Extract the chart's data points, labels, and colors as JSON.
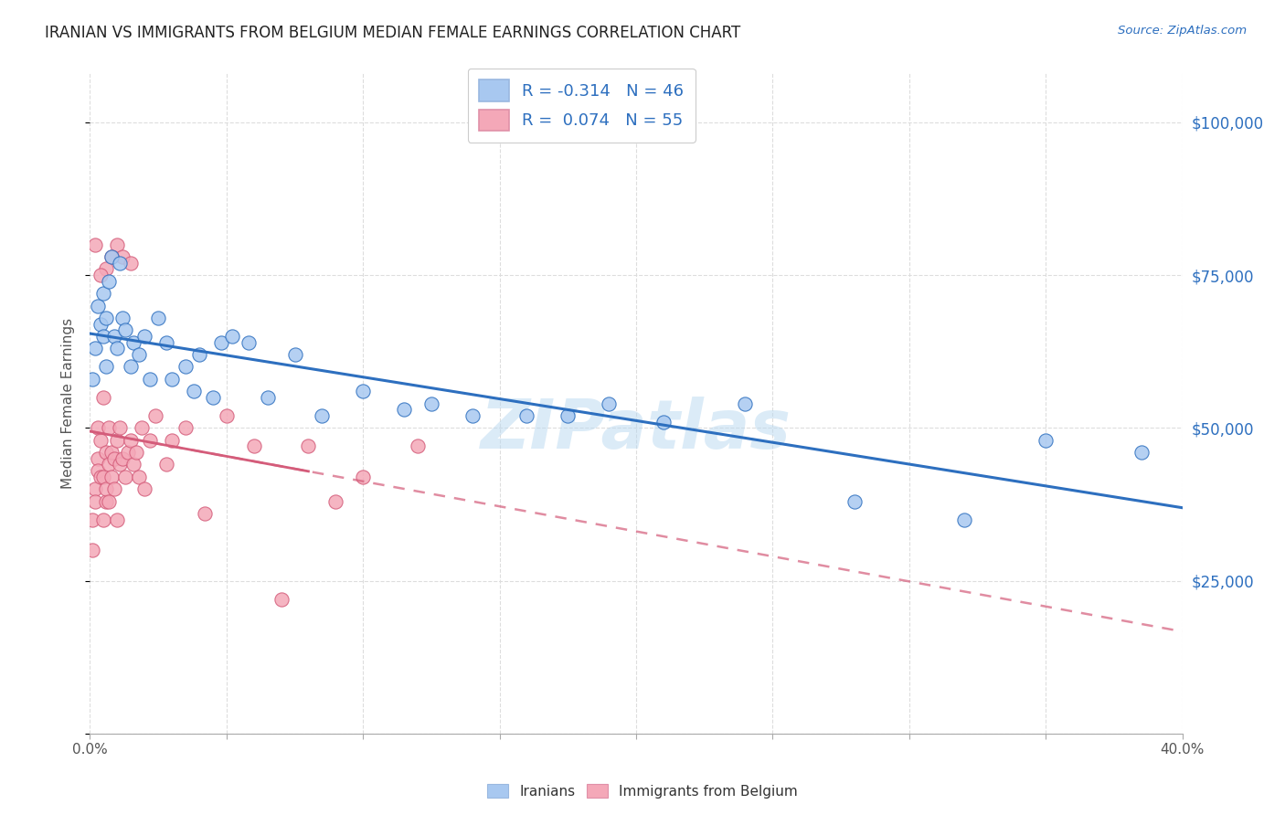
{
  "title": "IRANIAN VS IMMIGRANTS FROM BELGIUM MEDIAN FEMALE EARNINGS CORRELATION CHART",
  "source": "Source: ZipAtlas.com",
  "ylabel": "Median Female Earnings",
  "y_ticks": [
    0,
    25000,
    50000,
    75000,
    100000
  ],
  "y_tick_labels": [
    "",
    "$25,000",
    "$50,000",
    "$75,000",
    "$100,000"
  ],
  "x_lim": [
    0.0,
    0.4
  ],
  "y_lim": [
    0,
    108000
  ],
  "iranians_color": "#a8c8f0",
  "belgium_color": "#f4a8b8",
  "iranians_line_color": "#2d6fbf",
  "belgium_line_color": "#d45c7a",
  "legend_iranians_label": "R = -0.314   N = 46",
  "legend_belgium_label": "R =  0.074   N = 55",
  "watermark": "ZIPatlas",
  "watermark_color": "#b8d8f0",
  "iranians_x": [
    0.001,
    0.002,
    0.003,
    0.004,
    0.005,
    0.005,
    0.006,
    0.006,
    0.007,
    0.008,
    0.009,
    0.01,
    0.011,
    0.012,
    0.013,
    0.015,
    0.016,
    0.018,
    0.02,
    0.022,
    0.025,
    0.028,
    0.03,
    0.035,
    0.038,
    0.04,
    0.045,
    0.048,
    0.052,
    0.058,
    0.065,
    0.075,
    0.085,
    0.1,
    0.115,
    0.125,
    0.14,
    0.16,
    0.175,
    0.19,
    0.21,
    0.24,
    0.28,
    0.32,
    0.35,
    0.385
  ],
  "iranians_y": [
    58000,
    63000,
    70000,
    67000,
    72000,
    65000,
    68000,
    60000,
    74000,
    78000,
    65000,
    63000,
    77000,
    68000,
    66000,
    60000,
    64000,
    62000,
    65000,
    58000,
    68000,
    64000,
    58000,
    60000,
    56000,
    62000,
    55000,
    64000,
    65000,
    64000,
    55000,
    62000,
    52000,
    56000,
    53000,
    54000,
    52000,
    52000,
    52000,
    54000,
    51000,
    54000,
    38000,
    35000,
    48000,
    46000
  ],
  "belgium_x": [
    0.001,
    0.001,
    0.002,
    0.002,
    0.003,
    0.003,
    0.003,
    0.004,
    0.004,
    0.005,
    0.005,
    0.005,
    0.006,
    0.006,
    0.006,
    0.007,
    0.007,
    0.007,
    0.008,
    0.008,
    0.009,
    0.009,
    0.01,
    0.01,
    0.011,
    0.011,
    0.012,
    0.013,
    0.014,
    0.015,
    0.016,
    0.017,
    0.018,
    0.019,
    0.02,
    0.022,
    0.024,
    0.028,
    0.03,
    0.035,
    0.042,
    0.05,
    0.06,
    0.07,
    0.08,
    0.09,
    0.1,
    0.12,
    0.01,
    0.012,
    0.015,
    0.008,
    0.006,
    0.004,
    0.002
  ],
  "belgium_y": [
    35000,
    30000,
    40000,
    38000,
    45000,
    50000,
    43000,
    48000,
    42000,
    55000,
    42000,
    35000,
    38000,
    46000,
    40000,
    50000,
    44000,
    38000,
    46000,
    42000,
    40000,
    45000,
    48000,
    35000,
    44000,
    50000,
    45000,
    42000,
    46000,
    48000,
    44000,
    46000,
    42000,
    50000,
    40000,
    48000,
    52000,
    44000,
    48000,
    50000,
    36000,
    52000,
    47000,
    22000,
    47000,
    38000,
    42000,
    47000,
    80000,
    78000,
    77000,
    78000,
    76000,
    75000,
    80000
  ]
}
